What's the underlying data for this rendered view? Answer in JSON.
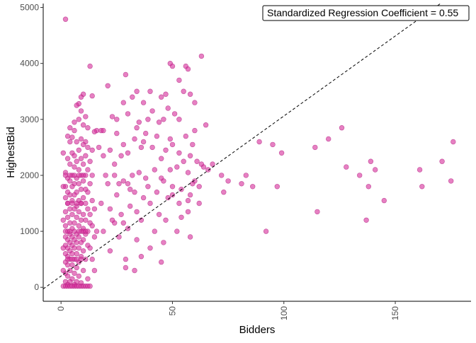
{
  "chart_data": {
    "type": "scatter",
    "title": "",
    "xlabel": "Bidders",
    "ylabel": "HighestBid",
    "xlim": [
      -8,
      184
    ],
    "ylim": [
      -250,
      5070
    ],
    "x_ticks": [
      0,
      50,
      100,
      150
    ],
    "x_tick_labels": [
      "0",
      "50",
      "100",
      "150"
    ],
    "y_ticks": [
      0,
      1000,
      2000,
      3000,
      4000,
      5000
    ],
    "y_tick_labels": [
      "0",
      "1000",
      "2000",
      "3000",
      "4000",
      "5000"
    ],
    "grid": false,
    "point_color": "#d62b9a",
    "point_stroke": "#b02080",
    "point_opacity": 0.6,
    "regression_line": {
      "color": "#000000",
      "style": "dashed",
      "intercept": 200,
      "slope": 28.6
    },
    "annotation": "Standardized Regression Coefficient = 0.55",
    "cluster_points": [
      [
        2,
        4790
      ],
      [
        13,
        3950
      ],
      [
        10,
        3450
      ],
      [
        9,
        3400
      ],
      [
        14,
        3420
      ],
      [
        8,
        3280
      ],
      [
        7,
        3250
      ],
      [
        9,
        3150
      ],
      [
        11,
        3050
      ],
      [
        8,
        3000
      ],
      [
        6,
        2950
      ],
      [
        10,
        2900
      ],
      [
        12,
        2850
      ],
      [
        4,
        2850
      ],
      [
        6,
        2800
      ],
      [
        16,
        2800
      ],
      [
        18,
        2800
      ],
      [
        15,
        2780
      ],
      [
        3,
        2700
      ],
      [
        5,
        2680
      ],
      [
        9,
        2650
      ],
      [
        7,
        2600
      ],
      [
        11,
        2600
      ],
      [
        4,
        2600
      ],
      [
        10,
        2550
      ],
      [
        12,
        2500
      ],
      [
        8,
        2450
      ],
      [
        14,
        2450
      ],
      [
        5,
        2400
      ],
      [
        6,
        2350
      ],
      [
        11,
        2350
      ],
      [
        3,
        2300
      ],
      [
        9,
        2300
      ],
      [
        7,
        2250
      ],
      [
        13,
        2250
      ],
      [
        4,
        2200
      ],
      [
        10,
        2200
      ],
      [
        6,
        2150
      ],
      [
        8,
        2100
      ],
      [
        12,
        2100
      ],
      [
        2,
        2050
      ],
      [
        5,
        2000
      ],
      [
        9,
        2000
      ],
      [
        11,
        2000
      ],
      [
        14,
        2000
      ],
      [
        3,
        1950
      ],
      [
        7,
        1950
      ],
      [
        4,
        1900
      ],
      [
        10,
        1900
      ],
      [
        6,
        1850
      ],
      [
        8,
        1850
      ],
      [
        13,
        1850
      ],
      [
        2,
        1800
      ],
      [
        5,
        1800
      ],
      [
        9,
        1750
      ],
      [
        11,
        1750
      ],
      [
        3,
        1700
      ],
      [
        7,
        1700
      ],
      [
        12,
        1700
      ],
      [
        4,
        1650
      ],
      [
        6,
        1650
      ],
      [
        10,
        1600
      ],
      [
        2,
        1600
      ],
      [
        8,
        1550
      ],
      [
        5,
        1550
      ],
      [
        14,
        1550
      ],
      [
        3,
        1500
      ],
      [
        9,
        1500
      ],
      [
        11,
        1500
      ],
      [
        7,
        1450
      ],
      [
        4,
        1400
      ],
      [
        6,
        1400
      ],
      [
        12,
        1400
      ],
      [
        2,
        1350
      ],
      [
        8,
        1350
      ],
      [
        10,
        1300
      ],
      [
        5,
        1300
      ],
      [
        3,
        1250
      ],
      [
        7,
        1250
      ],
      [
        9,
        1200
      ],
      [
        11,
        1200
      ],
      [
        4,
        1150
      ],
      [
        6,
        1150
      ],
      [
        13,
        1150
      ],
      [
        2,
        1100
      ],
      [
        8,
        1100
      ],
      [
        5,
        1050
      ],
      [
        10,
        1050
      ],
      [
        3,
        1000
      ],
      [
        6,
        1000
      ],
      [
        9,
        1000
      ],
      [
        12,
        1000
      ],
      [
        4,
        950
      ],
      [
        7,
        950
      ],
      [
        11,
        950
      ],
      [
        2,
        900
      ],
      [
        5,
        900
      ],
      [
        8,
        900
      ],
      [
        3,
        850
      ],
      [
        6,
        850
      ],
      [
        10,
        850
      ],
      [
        4,
        800
      ],
      [
        7,
        800
      ],
      [
        9,
        800
      ],
      [
        2,
        750
      ],
      [
        5,
        750
      ],
      [
        12,
        750
      ],
      [
        3,
        700
      ],
      [
        6,
        700
      ],
      [
        8,
        700
      ],
      [
        4,
        650
      ],
      [
        10,
        650
      ],
      [
        2,
        600
      ],
      [
        5,
        600
      ],
      [
        7,
        600
      ],
      [
        3,
        550
      ],
      [
        9,
        550
      ],
      [
        6,
        500
      ],
      [
        4,
        500
      ],
      [
        11,
        500
      ],
      [
        2,
        450
      ],
      [
        8,
        450
      ],
      [
        5,
        400
      ],
      [
        3,
        400
      ],
      [
        7,
        350
      ],
      [
        4,
        300
      ],
      [
        10,
        300
      ],
      [
        2,
        250
      ],
      [
        6,
        250
      ],
      [
        3,
        200
      ],
      [
        8,
        200
      ],
      [
        5,
        150
      ],
      [
        12,
        150
      ],
      [
        2,
        100
      ],
      [
        4,
        100
      ],
      [
        7,
        100
      ],
      [
        9,
        80
      ],
      [
        3,
        50
      ],
      [
        6,
        50
      ],
      [
        1,
        20
      ],
      [
        2,
        20
      ],
      [
        3,
        20
      ],
      [
        4,
        20
      ],
      [
        5,
        20
      ],
      [
        6,
        20
      ],
      [
        7,
        20
      ],
      [
        8,
        20
      ],
      [
        9,
        20
      ],
      [
        10,
        20
      ],
      [
        11,
        20
      ],
      [
        12,
        20
      ],
      [
        13,
        20
      ],
      [
        2,
        2000
      ],
      [
        4,
        2000
      ],
      [
        6,
        2000
      ],
      [
        8,
        2000
      ],
      [
        10,
        2000
      ],
      [
        3,
        1500
      ],
      [
        5,
        1500
      ],
      [
        7,
        1500
      ],
      [
        9,
        1500
      ],
      [
        2,
        1000
      ],
      [
        4,
        1000
      ],
      [
        8,
        1000
      ],
      [
        10,
        1000
      ],
      [
        11,
        1000
      ],
      [
        3,
        500
      ],
      [
        5,
        500
      ],
      [
        7,
        500
      ],
      [
        9,
        500
      ],
      [
        1,
        300
      ],
      [
        1,
        700
      ],
      [
        1,
        1200
      ],
      [
        1,
        1800
      ],
      [
        1,
        2400
      ],
      [
        13,
        1300
      ],
      [
        14,
        1100
      ],
      [
        15,
        900
      ],
      [
        13,
        700
      ],
      [
        14,
        500
      ],
      [
        15,
        300
      ],
      [
        16,
        1000
      ],
      [
        15,
        1400
      ]
    ],
    "scatter_points": [
      [
        63,
        4130
      ],
      [
        49,
        4000
      ],
      [
        50,
        3950
      ],
      [
        56,
        3950
      ],
      [
        57,
        3900
      ],
      [
        53,
        3700
      ],
      [
        29,
        3800
      ],
      [
        55,
        3500
      ],
      [
        40,
        3500
      ],
      [
        47,
        3450
      ],
      [
        34,
        3500
      ],
      [
        45,
        3400
      ],
      [
        28,
        3300
      ],
      [
        58,
        3450
      ],
      [
        37,
        3300
      ],
      [
        21,
        3600
      ],
      [
        32,
        3400
      ],
      [
        48,
        3200
      ],
      [
        51,
        3100
      ],
      [
        60,
        3300
      ],
      [
        53,
        3000
      ],
      [
        25,
        3000
      ],
      [
        39,
        3000
      ],
      [
        35,
        2950
      ],
      [
        44,
        2950
      ],
      [
        46,
        3000
      ],
      [
        30,
        3100
      ],
      [
        41,
        3150
      ],
      [
        23,
        3050
      ],
      [
        19,
        2800
      ],
      [
        34,
        2850
      ],
      [
        38,
        2750
      ],
      [
        49,
        2650
      ],
      [
        56,
        2700
      ],
      [
        65,
        2900
      ],
      [
        60,
        2800
      ],
      [
        25,
        2750
      ],
      [
        43,
        2700
      ],
      [
        33,
        2650
      ],
      [
        37,
        2600
      ],
      [
        59,
        2550
      ],
      [
        28,
        2550
      ],
      [
        50,
        2550
      ],
      [
        41,
        2500
      ],
      [
        47,
        2450
      ],
      [
        36,
        2500
      ],
      [
        53,
        2400
      ],
      [
        22,
        2450
      ],
      [
        30,
        2400
      ],
      [
        27,
        2350
      ],
      [
        58,
        2350
      ],
      [
        45,
        2300
      ],
      [
        55,
        2250
      ],
      [
        63,
        2200
      ],
      [
        61,
        2250
      ],
      [
        68,
        2200
      ],
      [
        52,
        2150
      ],
      [
        49,
        2100
      ],
      [
        42,
        2100
      ],
      [
        35,
        2050
      ],
      [
        24,
        2000
      ],
      [
        32,
        2000
      ],
      [
        38,
        1950
      ],
      [
        45,
        1950
      ],
      [
        57,
        2050
      ],
      [
        66,
        2100
      ],
      [
        72,
        2000
      ],
      [
        60,
        1900
      ],
      [
        46,
        1900
      ],
      [
        28,
        1900
      ],
      [
        21,
        1850
      ],
      [
        30,
        1850
      ],
      [
        39,
        1800
      ],
      [
        50,
        1800
      ],
      [
        54,
        1750
      ],
      [
        43,
        1700
      ],
      [
        33,
        1700
      ],
      [
        25,
        1650
      ],
      [
        37,
        1600
      ],
      [
        48,
        1600
      ],
      [
        58,
        1650
      ],
      [
        62,
        1500
      ],
      [
        53,
        1500
      ],
      [
        40,
        1500
      ],
      [
        31,
        1450
      ],
      [
        22,
        1400
      ],
      [
        34,
        1350
      ],
      [
        44,
        1300
      ],
      [
        57,
        1350
      ],
      [
        27,
        1300
      ],
      [
        47,
        1200
      ],
      [
        36,
        1200
      ],
      [
        24,
        1150
      ],
      [
        30,
        1050
      ],
      [
        42,
        1000
      ],
      [
        52,
        1000
      ],
      [
        58,
        900
      ],
      [
        26,
        900
      ],
      [
        34,
        850
      ],
      [
        46,
        800
      ],
      [
        40,
        700
      ],
      [
        22,
        650
      ],
      [
        29,
        500
      ],
      [
        36,
        550
      ],
      [
        45,
        450
      ],
      [
        33,
        300
      ],
      [
        29,
        350
      ],
      [
        19,
        1000
      ],
      [
        20,
        2000
      ],
      [
        18,
        1500
      ],
      [
        17,
        2500
      ],
      [
        23,
        1200
      ],
      [
        26,
        1850
      ],
      [
        19,
        2350
      ],
      [
        24,
        2200
      ],
      [
        28,
        1150
      ],
      [
        31,
        1750
      ],
      [
        54,
        1250
      ],
      [
        59,
        1850
      ],
      [
        57,
        1550
      ],
      [
        62,
        1800
      ],
      [
        64,
        2150
      ],
      [
        50,
        1650
      ],
      [
        75,
        1900
      ],
      [
        73,
        1700
      ],
      [
        81,
        1850
      ],
      [
        83,
        2000
      ],
      [
        86,
        1800
      ],
      [
        89,
        2600
      ],
      [
        95,
        2550
      ],
      [
        99,
        2400
      ],
      [
        114,
        2500
      ],
      [
        120,
        2650
      ],
      [
        126,
        2850
      ],
      [
        128,
        2150
      ],
      [
        134,
        2000
      ],
      [
        138,
        1800
      ],
      [
        139,
        2250
      ],
      [
        141,
        2100
      ],
      [
        145,
        1550
      ],
      [
        137,
        1200
      ],
      [
        115,
        1350
      ],
      [
        92,
        1000
      ],
      [
        97,
        1800
      ],
      [
        161,
        2100
      ],
      [
        162,
        1800
      ],
      [
        171,
        2250
      ],
      [
        175,
        1900
      ],
      [
        176,
        2600
      ]
    ]
  }
}
